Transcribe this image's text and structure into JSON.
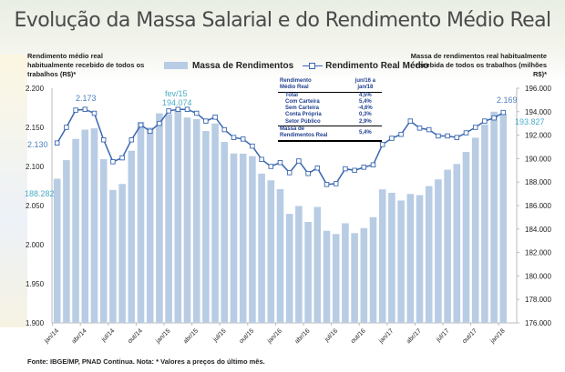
{
  "title": "Evolução da Massa Salarial e do Rendimento Médio Real",
  "source_note": "Fonte: IBGE/MP, PNAD Contínua. Nota: * Valores a preços do último mês.",
  "table": {
    "header": [
      "Rendimento Médio Real",
      "jun/16 a jan/18"
    ],
    "header_lines": [
      "Rendimento",
      "Médio Real",
      "jun/16 a",
      "jan/18"
    ],
    "rows": [
      {
        "label": "Total",
        "value": "4,5%"
      },
      {
        "label": "Com Carteira",
        "value": "5,4%"
      },
      {
        "label": "Sem Carteira",
        "value": "-4,6%"
      },
      {
        "label": "Conta Própria",
        "value": "0,3%"
      },
      {
        "label": "Setor Público",
        "value": "2,9%"
      }
    ],
    "footer": {
      "label_lines": [
        "Massa de",
        "Rendimentos Real"
      ],
      "value": "5,4%"
    }
  },
  "chart_data": {
    "type": "bar+line",
    "ylabel_left": "Rendimento médio real habitualmente recebido de todos os trabalhos (R$)*",
    "ylabel_right": "Massa de rendimentos real habitualmente recebida  de todos os trabalhos (milhões R$)*",
    "legend": [
      "Massa de Rendimentos",
      "Rendimento Real Médio"
    ],
    "legend_position": "top",
    "colors": {
      "bars": "#b8cce4",
      "line": "#3a67b0",
      "label_teal": "#4bacc6",
      "label_blue": "#4f81bd"
    },
    "ylim_left": [
      1.9,
      2.2
    ],
    "ylim_right": [
      176000,
      196000
    ],
    "yticks_left": [
      "1.900",
      "1.950",
      "2.000",
      "2.050",
      "2.100",
      "2.150",
      "2.200"
    ],
    "yticks_right": [
      "176.000",
      "178.000",
      "180.000",
      "182.000",
      "184.000",
      "186.000",
      "188.000",
      "190.000",
      "192.000",
      "194.000",
      "196.000"
    ],
    "categories": [
      "jan/14",
      "fev/14",
      "mar/14",
      "abr/14",
      "mai/14",
      "jun/14",
      "jul/14",
      "ago/14",
      "set/14",
      "out/14",
      "nov/14",
      "dez/14",
      "jan/15",
      "fev/15",
      "mar/15",
      "abr/15",
      "mai/15",
      "jun/15",
      "jul/15",
      "ago/15",
      "set/15",
      "out/15",
      "nov/15",
      "dez/15",
      "jan/16",
      "fev/16",
      "mar/16",
      "abr/16",
      "mai/16",
      "jun/16",
      "jul/16",
      "ago/16",
      "set/16",
      "out/16",
      "nov/16",
      "dez/16",
      "jan/17",
      "fev/17",
      "mar/17",
      "abr/17",
      "mai/17",
      "jun/17",
      "jul/17",
      "ago/17",
      "set/17",
      "out/17",
      "nov/17",
      "dez/17",
      "jan/18"
    ],
    "xtick_labels": [
      "jan/14",
      "abr/14",
      "jul/14",
      "out/14",
      "jan/15",
      "abr/15",
      "jul/15",
      "out/15",
      "jan/16",
      "abr/16",
      "jul/16",
      "out/16",
      "jan/17",
      "abr/17",
      "jul/17",
      "out/17",
      "jan/18"
    ],
    "series": [
      {
        "name": "Massa de Rendimentos",
        "axis": "right",
        "type": "bar",
        "values": [
          188282,
          189870,
          191680,
          192470,
          192580,
          189950,
          187330,
          187840,
          190670,
          193140,
          192650,
          193860,
          193800,
          194074,
          193500,
          193370,
          192350,
          192990,
          191420,
          190440,
          190420,
          190210,
          188720,
          188150,
          187400,
          185290,
          185960,
          184600,
          185880,
          183850,
          183570,
          184490,
          183650,
          184080,
          185010,
          187380,
          187090,
          186430,
          186990,
          186890,
          187660,
          188230,
          189050,
          189540,
          190570,
          191780,
          192910,
          194000,
          193827
        ]
      },
      {
        "name": "Rendimento Real Médio",
        "axis": "left",
        "type": "line",
        "values": [
          2.13,
          2.15,
          2.172,
          2.173,
          2.168,
          2.134,
          2.106,
          2.111,
          2.134,
          2.153,
          2.145,
          2.155,
          2.171,
          2.173,
          2.173,
          2.168,
          2.158,
          2.163,
          2.147,
          2.137,
          2.135,
          2.126,
          2.109,
          2.1,
          2.105,
          2.092,
          2.107,
          2.091,
          2.098,
          2.077,
          2.078,
          2.097,
          2.095,
          2.099,
          2.102,
          2.128,
          2.136,
          2.141,
          2.158,
          2.149,
          2.147,
          2.139,
          2.139,
          2.137,
          2.143,
          2.15,
          2.158,
          2.162,
          2.169
        ]
      }
    ],
    "annotations": [
      {
        "text": "2.130",
        "series": "Rendimento Real Médio",
        "category": "jan/14"
      },
      {
        "text": "188.282",
        "series": "Massa de Rendimentos",
        "category": "jan/14"
      },
      {
        "text": "2.173",
        "series": "Rendimento Real Médio",
        "category": "abr/14"
      },
      {
        "text": "fev/15",
        "series": "Massa de Rendimentos",
        "category": "fev/15"
      },
      {
        "text": "194.074",
        "series": "Massa de Rendimentos",
        "category": "fev/15"
      },
      {
        "text": "2.169",
        "series": "Rendimento Real Médio",
        "category": "jan/18"
      },
      {
        "text": "193.827",
        "series": "Massa de Rendimentos",
        "category": "jan/18"
      }
    ]
  }
}
